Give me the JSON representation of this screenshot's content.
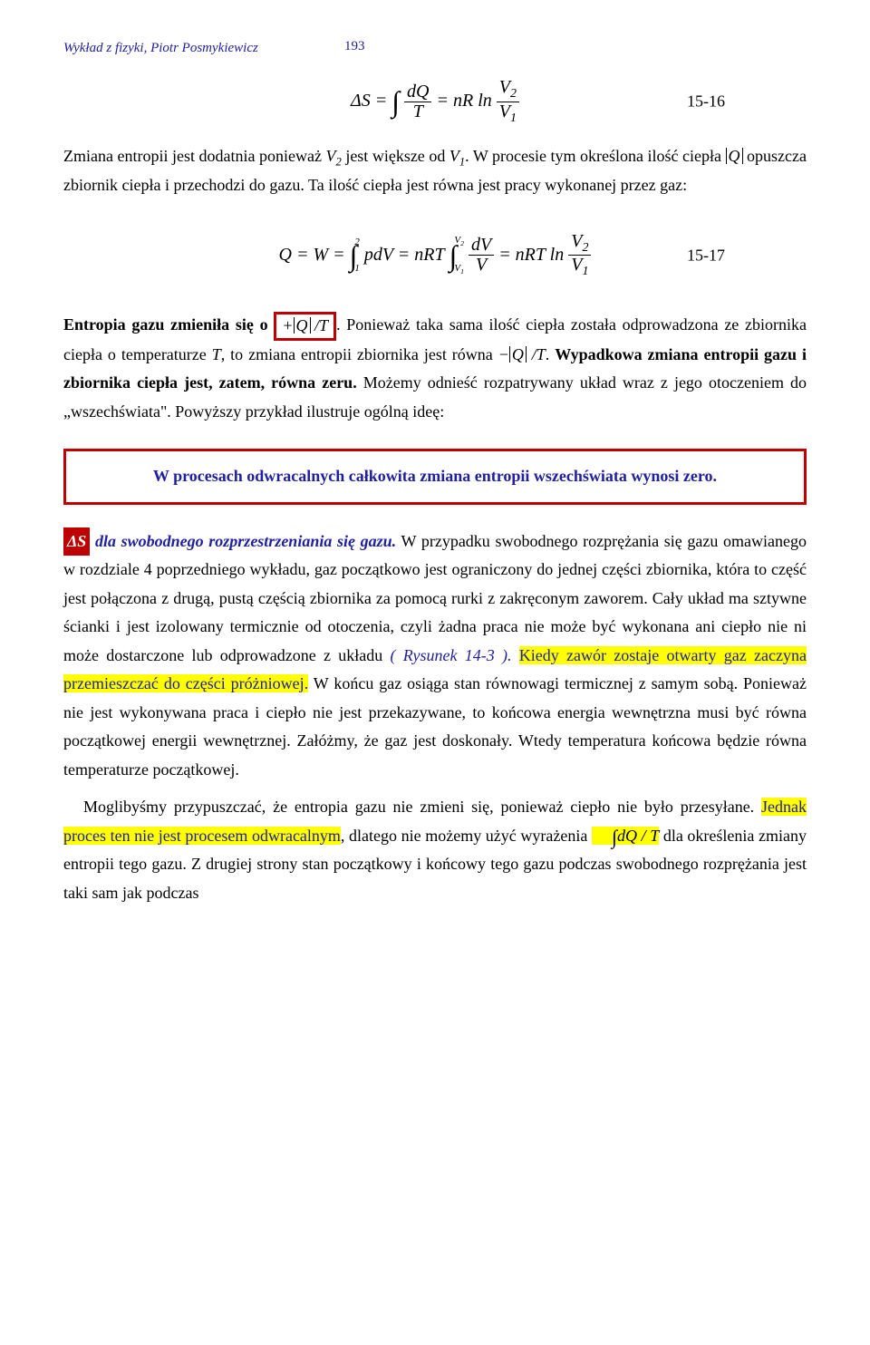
{
  "header": {
    "text": "Wykład z fizyki, Piotr Posmykiewicz",
    "page": "193"
  },
  "eq1": {
    "left": "ΔS =",
    "int": "∫",
    "frac_num": "dQ",
    "frac_den": "T",
    "mid": "= nR ln",
    "frac2_num": "V",
    "frac2_num_sub": "2",
    "frac2_den": "V",
    "frac2_den_sub": "1",
    "num": "15-16"
  },
  "para1": {
    "t1": "Zmiana entropii jest dodatnia ponieważ ",
    "v2": "V",
    "v2s": "2",
    "t2": " jest większe od ",
    "v1": "V",
    "v1s": "1",
    "t3": ". W procesie tym określona ilość ciepła ",
    "absQ": "Q",
    "t4": " opuszcza zbiornik ciepła i przechodzi do gazu. Ta ilość ciepła jest równa jest pracy wykonanej przez gaz:"
  },
  "eq2": {
    "lhs": "Q = W =",
    "int1": "∫",
    "up1": "2",
    "dn1": "1",
    "mid1": "pdV = nRT",
    "int2": "∫",
    "up2": "V",
    "up2s": "2",
    "dn2": "V",
    "dn2s": "1",
    "frac_num": "dV",
    "frac_den": "V",
    "rhs": "= nRT ln",
    "frac2_num": "V",
    "frac2_num_sub": "2",
    "frac2_den": "V",
    "frac2_den_sub": "1",
    "num": "15-17"
  },
  "para2": {
    "t1": "Entropia gazu zmieniła się o ",
    "box": "+|Q|/T",
    "t2": ". Ponieważ taka sama ilość ciepła została odprowadzona ze zbiornika ciepła o temperaturze ",
    "T": "T",
    "t3": ", to zmiana entropii zbiornika jest równa ",
    "minus": "−|Q|/T",
    "t4": ". ",
    "bold": "Wypadkowa zmiana entropii gazu i zbiornika ciepła jest, zatem, równa zeru.",
    "t5": " Możemy odnieść rozpatrywany układ wraz z jego otoczeniem do „wszechświata\". Powyższy przykład ilustruje ogólną ideę:"
  },
  "boxed1": "W procesach odwracalnych całkowita zmiana entropii wszechświata wynosi zero.",
  "para3": {
    "ds": "ΔS",
    "title": " dla swobodnego rozprzestrzeniania się gazu.",
    "t1": " W przypadku swobodnego rozprężania się gazu omawianego w rozdziale 4 poprzedniego wykładu, gaz początkowo jest ograniczony do jednej części zbiornika, która to część jest połączona z drugą, pustą częścią zbiornika za pomocą rurki z zakręconym zaworem. Cały układ ma sztywne ścianki i jest izolowany termicznie od otoczenia, czyli żadna praca nie może być wykonana ani ciepło nie ni może dostarczone lub odprowadzone z układu ",
    "ref": " ( Rysunek 14-3 ). ",
    "t2": "Kiedy zawór zostaje otwarty gaz zaczyna przemieszczać do części próżniowej.",
    "t3": " W końcu gaz osiąga stan równowagi termicznej z samym sobą. Ponieważ nie jest wykonywana praca i ciepło nie jest przekazywane, to końcowa energia wewnętrzna musi być równa początkowej energii wewnętrznej. Załóżmy, że gaz jest doskonały. Wtedy temperatura końcowa będzie równa temperaturze początkowej."
  },
  "para4": {
    "t1": "Moglibyśmy przypuszczać, że entropia gazu nie zmieni się, ponieważ ciepło nie było przesyłane. ",
    "t2": "Jednak proces ten nie jest procesem odwracalnym",
    "t3": ", dlatego nie możemy użyć wyrażenia ",
    "int": "∫",
    "expr": "dQ / T",
    "t4": " dla określenia zmiany entropii tego gazu. Z drugiej strony stan początkowy i końcowy tego gazu podczas swobodnego rozprężania jest taki sam jak podczas"
  }
}
